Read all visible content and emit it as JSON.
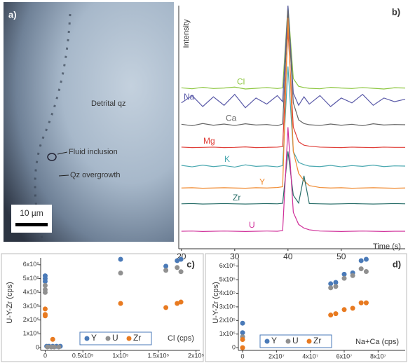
{
  "figure_a": {
    "label": "a)",
    "annotations": [
      "Detrital qz",
      "Fluid inclusion",
      "Qz overgrowth"
    ],
    "scale_bar": "10 µm"
  },
  "chart_data": [
    {
      "type": "line",
      "label": "b)",
      "y_label": "Intensity",
      "x_label": "Time (s)",
      "x": [
        20,
        22,
        24,
        26,
        28,
        30,
        32,
        34,
        36,
        38,
        39,
        40,
        41,
        42,
        43,
        44,
        46,
        48,
        50,
        52,
        54,
        56,
        58,
        60,
        62
      ],
      "xlim": [
        19.5,
        62
      ],
      "xticks": [
        20,
        30,
        40,
        50
      ],
      "ylim": [
        0,
        100
      ],
      "series": [
        {
          "name": "Cl",
          "color": "#8cc63f",
          "values": [
            66.2,
            65.8,
            66.4,
            65.9,
            66.1,
            66.5,
            65.7,
            66.0,
            66.3,
            65.9,
            66.2,
            100,
            70,
            66.8,
            66.3,
            66.0,
            65.8,
            66.4,
            66.1,
            65.9,
            66.3,
            66.0,
            65.7,
            66.2,
            66.1
          ]
        },
        {
          "name": "Na",
          "color": "#5a5aa8",
          "values": [
            60,
            63,
            58.5,
            62.5,
            59,
            63.5,
            58,
            62,
            59.5,
            63,
            60.5,
            100,
            64,
            59,
            62.5,
            59.5,
            63,
            58.5,
            62,
            60,
            63.5,
            59,
            62,
            60.5,
            61.5
          ]
        },
        {
          "name": "Ca",
          "color": "#666666",
          "values": [
            51.2,
            50.6,
            51.5,
            50.8,
            51.3,
            50.7,
            51.4,
            50.9,
            51.1,
            50.6,
            51.3,
            98,
            60,
            53,
            51.5,
            51,
            50.7,
            51.3,
            50.8,
            51.2,
            50.6,
            51.4,
            50.9,
            51.1,
            51
          ]
        },
        {
          "name": "Mg",
          "color": "#e0403a",
          "values": [
            41.8,
            41.6,
            41.7,
            41.8,
            41.6,
            41.7,
            41.9,
            41.6,
            41.7,
            41.8,
            42,
            90,
            50,
            44,
            42.6,
            42.2,
            41.8,
            41.7,
            41.6,
            41.8,
            41.7,
            41.6,
            41.8,
            41.7,
            41.7
          ]
        },
        {
          "name": "K",
          "color": "#4aa8b0",
          "values": [
            34.3,
            33.7,
            34.4,
            33.8,
            34.2,
            33.6,
            34.5,
            33.9,
            34.1,
            33.7,
            34.2,
            75,
            40,
            35.5,
            34.6,
            34,
            33.8,
            34.3,
            33.7,
            34.2,
            33.9,
            34.4,
            33.8,
            34.1,
            34
          ]
        },
        {
          "name": "Y",
          "color": "#f08a30",
          "values": [
            25,
            25.1,
            24.9,
            25,
            25.1,
            25,
            24.9,
            25.1,
            25,
            25.2,
            25.5,
            95,
            40,
            31,
            28,
            26,
            25.2,
            25,
            25.1,
            24.9,
            25,
            25.1,
            25,
            24.9,
            25
          ]
        },
        {
          "name": "Zr",
          "color": "#2a6f6a",
          "values": [
            18.5,
            18.6,
            18.4,
            18.5,
            18.6,
            18.5,
            18.4,
            18.5,
            18.6,
            18.5,
            18.7,
            40,
            22,
            18.8,
            30,
            18.6,
            18.5,
            18.4,
            18.5,
            18.6,
            18.5,
            18.4,
            18.5,
            18.6,
            18.5
          ]
        },
        {
          "name": "U",
          "color": "#d0309a",
          "values": [
            7.2,
            7.3,
            7.1,
            7.2,
            7.3,
            7.2,
            7.1,
            7.2,
            7.3,
            7.2,
            7.5,
            50,
            15,
            10,
            8.5,
            7.8,
            7.3,
            7.2,
            7.1,
            7.2,
            7.3,
            7.2,
            7.1,
            7.2,
            7.2
          ]
        }
      ]
    },
    {
      "type": "scatter",
      "label": "c)",
      "y_label": "U-Y-Zr (cps)",
      "x_label": "Cl (cps)",
      "xlim": [
        -6000,
        205000
      ],
      "xticks": [
        0,
        {
          "value": 50000,
          "label": "0.5x10⁵"
        },
        {
          "value": 100000,
          "label": "1x10⁵"
        },
        {
          "value": 150000,
          "label": "1.5x10⁵"
        },
        {
          "value": 200000,
          "label": "2x10⁵"
        }
      ],
      "ylim": [
        -20000,
        650000
      ],
      "yticks": [
        0,
        {
          "value": 100000,
          "label": "1x10⁵"
        },
        {
          "value": 200000,
          "label": "2x10⁵"
        },
        {
          "value": 300000,
          "label": "3x10⁵"
        },
        {
          "value": 400000,
          "label": "4x10⁵"
        },
        {
          "value": 500000,
          "label": "5x10⁵"
        },
        {
          "value": 600000,
          "label": "6x10⁵"
        }
      ],
      "series": [
        {
          "name": "Y",
          "color": "#4a7ab8",
          "x": [
            0,
            0,
            0,
            2000,
            5000,
            10000,
            15000,
            20000,
            100000,
            160000,
            175000,
            180000
          ],
          "values": [
            520000,
            500000,
            480000,
            10000,
            10000,
            10000,
            10000,
            10000,
            640000,
            590000,
            630000,
            640000
          ]
        },
        {
          "name": "U",
          "color": "#909090",
          "x": [
            0,
            0,
            0,
            3000,
            8000,
            12000,
            18000,
            100000,
            160000,
            175000,
            180000
          ],
          "values": [
            450000,
            420000,
            400000,
            5000,
            5000,
            5000,
            5000,
            540000,
            560000,
            580000,
            550000
          ]
        },
        {
          "name": "Zr",
          "color": "#e87a20",
          "x": [
            0,
            0,
            0,
            10000,
            100000,
            160000,
            175000,
            180000
          ],
          "values": [
            280000,
            240000,
            230000,
            60000,
            320000,
            290000,
            320000,
            330000
          ]
        }
      ]
    },
    {
      "type": "scatter",
      "label": "d)",
      "y_label": "U-Y-Zr (cps)",
      "x_label": "Na+Ca (cps)",
      "xlim": [
        -2500000,
        96000000
      ],
      "xticks": [
        0,
        {
          "value": 20000000,
          "label": "2x10⁷"
        },
        {
          "value": 40000000,
          "label": "4x10⁷"
        },
        {
          "value": 60000000,
          "label": "6x10⁷"
        },
        {
          "value": 80000000,
          "label": "8x10⁷"
        }
      ],
      "ylim": [
        -20000,
        650000
      ],
      "yticks": [
        0,
        {
          "value": 100000,
          "label": "1x10⁵"
        },
        {
          "value": 200000,
          "label": "2x10⁵"
        },
        {
          "value": 300000,
          "label": "3x10⁵"
        },
        {
          "value": 400000,
          "label": "4x10⁵"
        },
        {
          "value": 500000,
          "label": "5x10⁵"
        },
        {
          "value": 600000,
          "label": "6x10⁵"
        }
      ],
      "series": [
        {
          "name": "Y",
          "color": "#4a7ab8",
          "x": [
            0,
            0,
            52000000,
            55000000,
            60000000,
            65000000,
            70000000,
            73000000
          ],
          "values": [
            180000,
            110000,
            470000,
            480000,
            540000,
            550000,
            640000,
            650000
          ]
        },
        {
          "name": "U",
          "color": "#909090",
          "x": [
            0,
            52000000,
            55000000,
            60000000,
            65000000,
            70000000,
            73000000
          ],
          "values": [
            80000,
            440000,
            450000,
            510000,
            530000,
            580000,
            560000
          ]
        },
        {
          "name": "Zr",
          "color": "#e87a20",
          "x": [
            0,
            0,
            52000000,
            55000000,
            60000000,
            65000000,
            70000000,
            73000000
          ],
          "values": [
            60000,
            0,
            240000,
            250000,
            280000,
            290000,
            330000,
            330000
          ]
        }
      ]
    }
  ]
}
